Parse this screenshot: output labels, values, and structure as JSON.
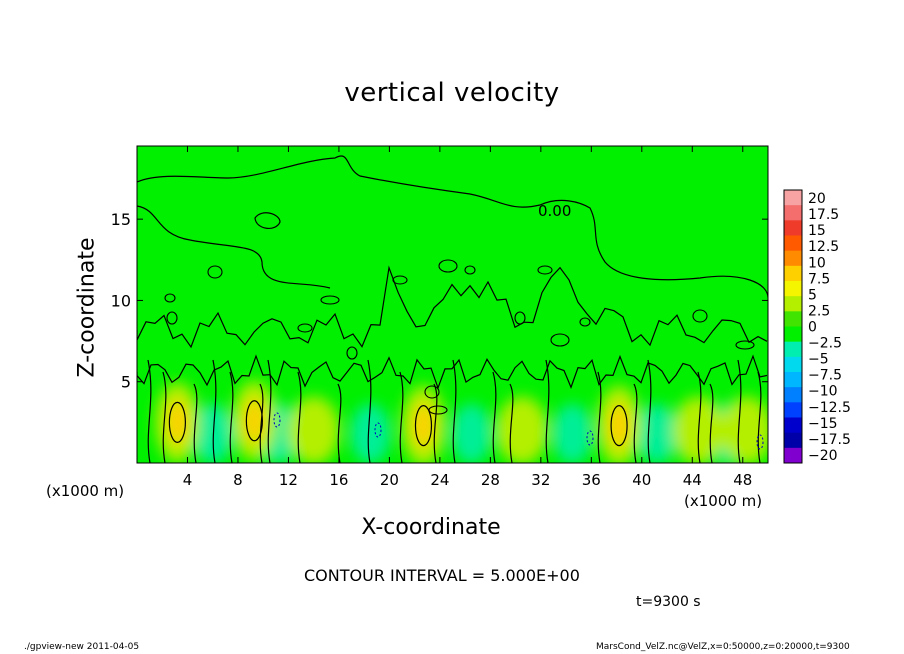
{
  "chart_data": {
    "type": "heatmap",
    "title": "vertical velocity",
    "xlabel": "X-coordinate",
    "ylabel": "Z-coordinate",
    "x_unit_label": "(x1000 m)",
    "xlim": [
      0,
      50
    ],
    "ylim": [
      0,
      19.5
    ],
    "x_ticks": [
      4,
      8,
      12,
      16,
      20,
      24,
      28,
      32,
      36,
      40,
      44,
      48
    ],
    "y_ticks": [
      5,
      10,
      15
    ],
    "contour_label": "0.00",
    "contour_interval_text": "CONTOUR INTERVAL = 5.000E+00",
    "time_label": "t=9300 s",
    "colorbar": {
      "levels": [
        20,
        17.5,
        15,
        12.5,
        10,
        7.5,
        5,
        2.5,
        0,
        -2.5,
        -5,
        -7.5,
        -10,
        -12.5,
        -15,
        -17.5,
        -20
      ],
      "colors": [
        "#f7a3a3",
        "#f46e6e",
        "#ef3b2a",
        "#ff5a00",
        "#ff8c00",
        "#ffd000",
        "#f5f500",
        "#b4ef00",
        "#40e400",
        "#00f000",
        "#00efb0",
        "#00d9ee",
        "#00b6ff",
        "#0080ff",
        "#0040ff",
        "#0000cc",
        "#0000a8",
        "#7f00cf"
      ]
    },
    "updraft_cores": [
      {
        "x": 3.2,
        "z": 2.5,
        "w": 7.5
      },
      {
        "x": 9.3,
        "z": 2.6,
        "w": 7.5
      },
      {
        "x": 22.7,
        "z": 2.3,
        "w": 7.5
      },
      {
        "x": 38.2,
        "z": 2.3,
        "w": 7.5
      },
      {
        "x": 14.0,
        "z": 2.0,
        "w": 2.5
      },
      {
        "x": 30.5,
        "z": 2.0,
        "w": 2.5
      },
      {
        "x": 44.5,
        "z": 2.0,
        "w": 2.5
      },
      {
        "x": 48.3,
        "z": 2.0,
        "w": 2.5
      }
    ],
    "downdraft_zones": [
      {
        "x": 6.0,
        "z": 1.8,
        "w": -5
      },
      {
        "x": 11.2,
        "z": 1.8,
        "w": -5
      },
      {
        "x": 18.5,
        "z": 1.8,
        "w": -5
      },
      {
        "x": 26.5,
        "z": 1.8,
        "w": -5
      },
      {
        "x": 34.5,
        "z": 1.8,
        "w": -5
      },
      {
        "x": 41.2,
        "z": 1.8,
        "w": -5
      },
      {
        "x": 46.8,
        "z": 1.8,
        "w": -5
      }
    ]
  },
  "footer": {
    "left": "./gpview-new  2011-04-05",
    "right": "MarsCond_VelZ.nc@VelZ,x=0:50000,z=0:20000,t=9300"
  }
}
